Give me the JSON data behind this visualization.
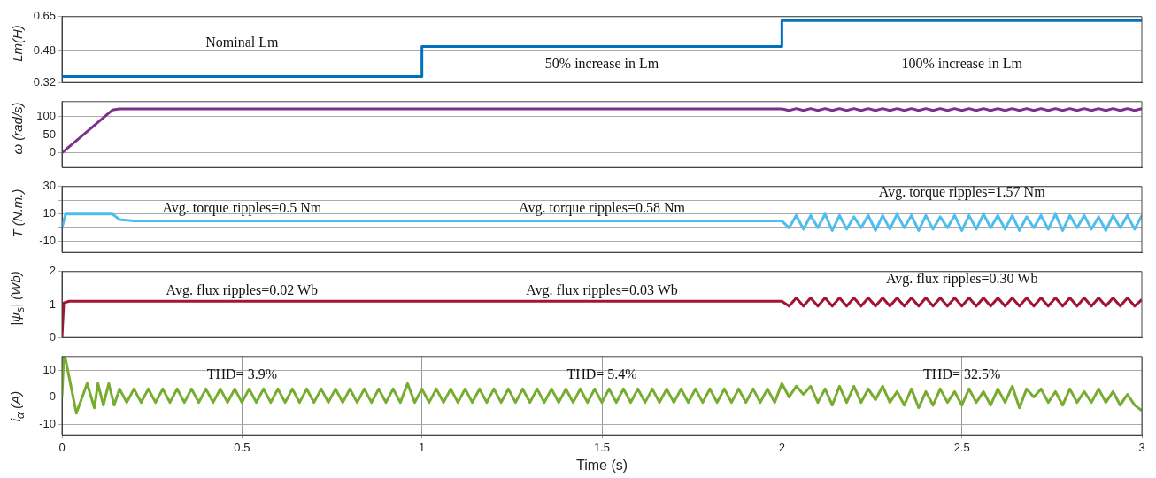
{
  "chart_data": [
    {
      "type": "step",
      "ylabel": "Lm(H)",
      "xlim": [
        0,
        3
      ],
      "xticks": [
        0,
        0.5,
        1,
        1.5,
        2,
        2.5,
        3
      ],
      "ylim": [
        0.32,
        0.65
      ],
      "yticks": [
        0.32,
        0.48,
        0.65
      ],
      "grid": "y",
      "tick_labels": "y",
      "series": [
        {
          "color": "#0072bd",
          "x": [
            0,
            1,
            2,
            3
          ],
          "values": [
            0.35,
            0.5,
            0.63,
            0.63
          ]
        }
      ],
      "annotations": [
        "Nominal Lm",
        "50% increase in Lm",
        "100% increase in Lm"
      ]
    },
    {
      "type": "line",
      "ylabel": "ω (rad/s)",
      "xlim": [
        0,
        3
      ],
      "xticks": [
        0,
        0.5,
        1,
        1.5,
        2,
        2.5,
        3
      ],
      "ylim": [
        -40,
        140
      ],
      "yticks": [
        0,
        50,
        100
      ],
      "grid": "y",
      "tick_labels": "y",
      "series": [
        {
          "color": "#7e2f8e",
          "x": [
            0,
            0.14,
            0.16,
            2,
            2.02,
            2.04,
            2.06,
            2.08,
            2.1,
            2.12,
            2.14,
            2.16,
            2.18,
            2.2,
            2.22,
            2.24,
            2.26,
            2.28,
            2.3,
            2.32,
            2.34,
            2.36,
            2.38,
            2.4,
            2.42,
            2.44,
            2.46,
            2.48,
            2.5,
            2.52,
            2.54,
            2.56,
            2.58,
            2.6,
            2.62,
            2.64,
            2.66,
            2.68,
            2.7,
            2.72,
            2.74,
            2.76,
            2.78,
            2.8,
            2.82,
            2.84,
            2.86,
            2.88,
            2.9,
            2.92,
            2.94,
            2.96,
            2.98,
            3
          ],
          "values": [
            0,
            117,
            120,
            120,
            116,
            121,
            116,
            121,
            116,
            121,
            116,
            121,
            116,
            121,
            116,
            121,
            116,
            121,
            116,
            121,
            116,
            121,
            116,
            121,
            116,
            121,
            116,
            121,
            116,
            121,
            116,
            121,
            116,
            121,
            116,
            121,
            116,
            121,
            116,
            121,
            116,
            121,
            116,
            121,
            116,
            121,
            116,
            121,
            116,
            121,
            116,
            121,
            116,
            121
          ]
        }
      ]
    },
    {
      "type": "line",
      "ylabel": "T (N.m.)",
      "xlim": [
        0,
        3
      ],
      "xticks": [
        0,
        0.5,
        1,
        1.5,
        2,
        2.5,
        3
      ],
      "ylim": [
        -18,
        30
      ],
      "yticks": [
        30,
        {
          "value": 20,
          "label": null
        },
        10,
        {
          "value": 0,
          "label": null
        },
        -10
      ],
      "grid": "y",
      "tick_labels": "y",
      "series": [
        {
          "color": "#4dbeee",
          "x": [
            0,
            0.01,
            0.14,
            0.16,
            0.2,
            2,
            2.02,
            2.04,
            2.06,
            2.08,
            2.1,
            2.12,
            2.14,
            2.16,
            2.18,
            2.2,
            2.22,
            2.24,
            2.26,
            2.28,
            2.3,
            2.32,
            2.34,
            2.36,
            2.38,
            2.4,
            2.42,
            2.44,
            2.46,
            2.48,
            2.5,
            2.52,
            2.54,
            2.56,
            2.58,
            2.6,
            2.62,
            2.64,
            2.66,
            2.68,
            2.7,
            2.72,
            2.74,
            2.76,
            2.78,
            2.8,
            2.82,
            2.84,
            2.86,
            2.88,
            2.9,
            2.92,
            2.94,
            2.96,
            2.98,
            3
          ],
          "values": [
            0,
            10,
            10,
            6,
            5,
            5,
            0,
            9,
            -1,
            9,
            0,
            10,
            -2,
            9,
            -1,
            8,
            0,
            9,
            -2,
            9,
            -1,
            10,
            0,
            9,
            -2,
            9,
            -1,
            8,
            0,
            9,
            -2,
            9,
            -1,
            10,
            0,
            9,
            -1,
            9,
            -2,
            8,
            0,
            9,
            -1,
            10,
            -2,
            9,
            0,
            9,
            -1,
            8,
            -2,
            9,
            0,
            9,
            -1,
            9
          ]
        }
      ],
      "annotations": [
        "Avg. torque ripples=0.5 Nm",
        "Avg. torque ripples=0.58 Nm",
        "Avg. torque ripples=1.57 Nm"
      ]
    },
    {
      "type": "line",
      "ylabel": "|ψ$_{s}$| (Wb)",
      "xlim": [
        0,
        3
      ],
      "xticks": [
        0,
        0.5,
        1,
        1.5,
        2,
        2.5,
        3
      ],
      "ylim": [
        0,
        2
      ],
      "yticks": [
        0,
        1,
        2
      ],
      "grid": "y",
      "tick_labels": "y",
      "series": [
        {
          "color": "#a2142f",
          "x": [
            0,
            0.005,
            0.02,
            2,
            2.02,
            2.04,
            2.06,
            2.08,
            2.1,
            2.12,
            2.14,
            2.16,
            2.18,
            2.2,
            2.22,
            2.24,
            2.26,
            2.28,
            2.3,
            2.32,
            2.34,
            2.36,
            2.38,
            2.4,
            2.42,
            2.44,
            2.46,
            2.48,
            2.5,
            2.52,
            2.54,
            2.56,
            2.58,
            2.6,
            2.62,
            2.64,
            2.66,
            2.68,
            2.7,
            2.72,
            2.74,
            2.76,
            2.78,
            2.8,
            2.82,
            2.84,
            2.86,
            2.88,
            2.9,
            2.92,
            2.94,
            2.96,
            2.98,
            3
          ],
          "values": [
            0,
            1.05,
            1.1,
            1.1,
            0.95,
            1.2,
            0.95,
            1.2,
            0.95,
            1.2,
            0.95,
            1.2,
            0.95,
            1.2,
            0.95,
            1.2,
            0.95,
            1.2,
            0.95,
            1.2,
            0.95,
            1.2,
            0.95,
            1.2,
            0.95,
            1.2,
            0.95,
            1.2,
            0.95,
            1.2,
            0.95,
            1.2,
            0.95,
            1.2,
            0.95,
            1.2,
            0.95,
            1.2,
            0.95,
            1.2,
            0.95,
            1.2,
            0.95,
            1.2,
            0.95,
            1.2,
            0.95,
            1.2,
            0.95,
            1.2,
            0.95,
            1.2,
            0.95,
            1.15
          ]
        }
      ],
      "annotations": [
        "Avg. flux ripples=0.02 Wb",
        "Avg. flux ripples=0.03 Wb",
        "Avg. flux ripples=0.30 Wb"
      ]
    },
    {
      "type": "line",
      "ylabel": "i$_{α}$ (A)",
      "xlabel": "Time (s)",
      "xlim": [
        0,
        3
      ],
      "xticks": [
        0,
        0.5,
        1,
        1.5,
        2,
        2.5,
        3
      ],
      "ylim": [
        -14,
        15
      ],
      "yticks": [
        -10,
        0,
        10
      ],
      "grid": true,
      "series": [
        {
          "color": "#77ac30",
          "x": [
            0,
            0.005,
            0.01,
            0.04,
            0.07,
            0.09,
            0.1,
            0.115,
            0.13,
            0.145,
            0.16,
            0.18,
            0.2,
            0.22,
            0.24,
            0.26,
            0.28,
            0.3,
            0.32,
            0.34,
            0.36,
            0.38,
            0.4,
            0.42,
            0.44,
            0.46,
            0.48,
            0.5,
            0.52,
            0.54,
            0.56,
            0.58,
            0.6,
            0.62,
            0.64,
            0.66,
            0.68,
            0.7,
            0.72,
            0.74,
            0.76,
            0.78,
            0.8,
            0.82,
            0.84,
            0.86,
            0.88,
            0.9,
            0.92,
            0.94,
            0.96,
            0.98,
            1,
            1.02,
            1.04,
            1.06,
            1.08,
            1.1,
            1.12,
            1.14,
            1.16,
            1.18,
            1.2,
            1.22,
            1.24,
            1.26,
            1.28,
            1.3,
            1.32,
            1.34,
            1.36,
            1.38,
            1.4,
            1.42,
            1.44,
            1.46,
            1.48,
            1.5,
            1.52,
            1.54,
            1.56,
            1.58,
            1.6,
            1.62,
            1.64,
            1.66,
            1.68,
            1.7,
            1.72,
            1.74,
            1.76,
            1.78,
            1.8,
            1.82,
            1.84,
            1.86,
            1.88,
            1.9,
            1.92,
            1.94,
            1.96,
            1.98,
            2,
            2.02,
            2.04,
            2.06,
            2.08,
            2.1,
            2.12,
            2.14,
            2.16,
            2.18,
            2.2,
            2.22,
            2.24,
            2.26,
            2.28,
            2.3,
            2.32,
            2.34,
            2.36,
            2.38,
            2.4,
            2.42,
            2.44,
            2.46,
            2.48,
            2.5,
            2.52,
            2.54,
            2.56,
            2.58,
            2.6,
            2.62,
            2.64,
            2.66,
            2.68,
            2.7,
            2.72,
            2.74,
            2.76,
            2.78,
            2.8,
            2.82,
            2.84,
            2.86,
            2.88,
            2.9,
            2.92,
            2.94,
            2.96,
            2.98,
            3
          ],
          "values": [
            0,
            15,
            14,
            -6,
            5,
            -4,
            5,
            -3,
            5,
            -3,
            3,
            -2,
            3,
            -2,
            3,
            -2,
            3,
            -2,
            3,
            -2,
            3,
            -2,
            3,
            -2,
            3,
            -2,
            3,
            -2,
            3,
            -2,
            3,
            -2,
            3,
            -2,
            3,
            -2,
            3,
            -2,
            3,
            -2,
            3,
            -2,
            3,
            -2,
            3,
            -2,
            3,
            -2,
            3,
            -2,
            5,
            -2,
            3,
            -2,
            3,
            -2,
            3,
            -2,
            3,
            -2,
            3,
            -2,
            3,
            -2,
            3,
            -2,
            3,
            -2,
            3,
            -2,
            3,
            -2,
            3,
            -2,
            3,
            -2,
            3,
            -2,
            3,
            -2,
            3,
            -2,
            3,
            -2,
            3,
            -2,
            3,
            -2,
            3,
            -2,
            3,
            -2,
            3,
            -2,
            3,
            -2,
            3,
            -2,
            3,
            -2,
            3,
            -2,
            5,
            0,
            4,
            1,
            4,
            -2,
            3,
            -3,
            4,
            -2,
            4,
            -2,
            3,
            -1,
            4,
            -2,
            2,
            -3,
            3,
            -4,
            2,
            -3,
            3,
            -2,
            2,
            -3,
            3,
            -2,
            2,
            -3,
            3,
            -2,
            4,
            -4,
            3,
            0,
            3,
            -2,
            2,
            -3,
            3,
            -2,
            2,
            -2,
            3,
            -2,
            2,
            -3,
            1,
            -3,
            -5
          ]
        }
      ],
      "annotations": [
        "THD= 3.9%",
        "THD= 5.4%",
        "THD= 32.5%"
      ]
    }
  ]
}
